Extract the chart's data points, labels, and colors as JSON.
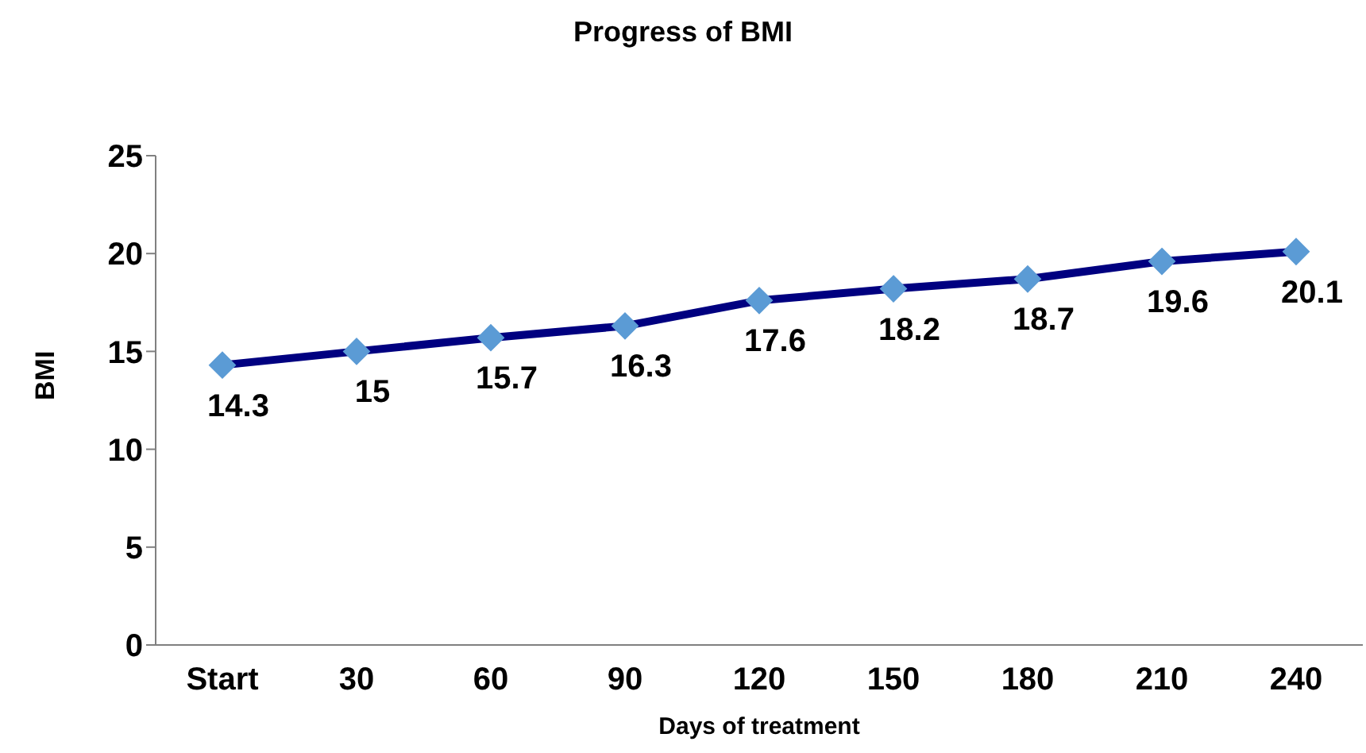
{
  "chart_data": {
    "type": "line",
    "title": "Progress of BMI",
    "xlabel": "Days of treatment",
    "ylabel": "BMI",
    "categories": [
      "Start",
      "30",
      "60",
      "90",
      "120",
      "150",
      "180",
      "210",
      "240"
    ],
    "series": [
      {
        "color": "#000080",
        "values": [
          14.3,
          15,
          15.7,
          16.3,
          17.6,
          18.2,
          18.7,
          19.6,
          20.1
        ]
      }
    ],
    "ylim": [
      0,
      25
    ],
    "yticks": [
      0,
      5,
      10,
      15,
      20,
      25
    ],
    "grid": false,
    "legend": false,
    "marker": "diamond",
    "data_labels": true
  }
}
